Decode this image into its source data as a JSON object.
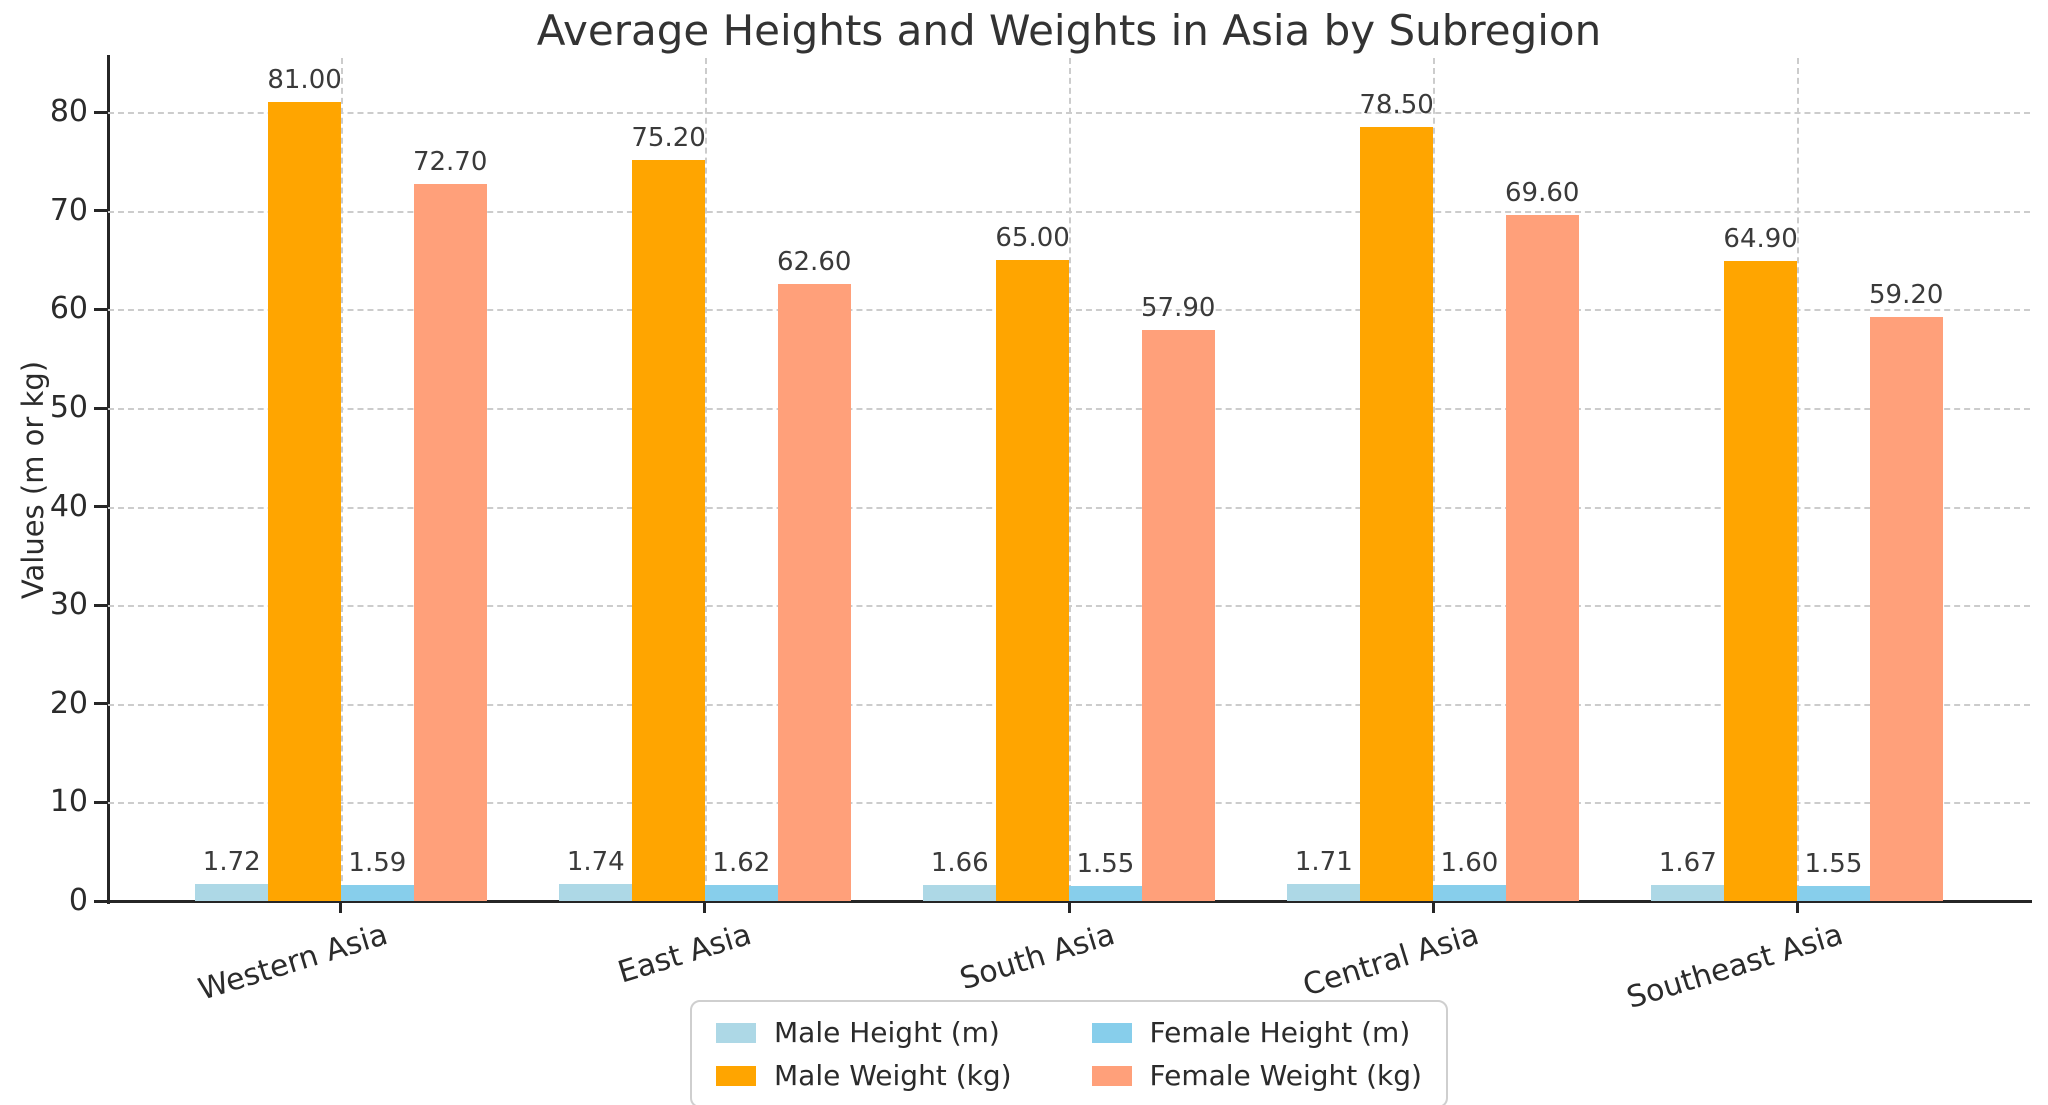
{
  "figure": {
    "background": "#ffffff"
  },
  "chart_data": {
    "type": "bar",
    "title": "Average Heights and Weights in Asia by Subregion",
    "xlabel": "",
    "ylabel": "Values (m or kg)",
    "categories": [
      "Western Asia",
      "East Asia",
      "South Asia",
      "Central Asia",
      "Southeast Asia"
    ],
    "series": [
      {
        "name": "Male Height (m)",
        "color": "#ADD8E6",
        "values": [
          1.72,
          1.74,
          1.66,
          1.71,
          1.67
        ]
      },
      {
        "name": "Male Weight (kg)",
        "color": "#FFA500",
        "values": [
          81.0,
          75.2,
          65.0,
          78.5,
          64.9
        ]
      },
      {
        "name": "Female Height (m)",
        "color": "#87CEEB",
        "values": [
          1.59,
          1.62,
          1.55,
          1.6,
          1.55
        ]
      },
      {
        "name": "Female Weight (kg)",
        "color": "#FFA07A",
        "values": [
          72.7,
          62.6,
          57.9,
          69.6,
          59.2
        ]
      }
    ],
    "value_labels": {
      "shown": true,
      "format": "2 decimal places",
      "examples": [
        "1.72",
        "81.00",
        "1.59",
        "72.70"
      ]
    },
    "yticks": [
      0,
      10,
      20,
      30,
      40,
      50,
      60,
      70,
      80
    ],
    "ylim": [
      0,
      85.5
    ],
    "grid": {
      "horizontal": true,
      "vertical": true,
      "style": "dashed",
      "color": "#cccccc"
    },
    "spines": {
      "left": true,
      "bottom": true,
      "top": false,
      "right": false,
      "color": "#262626"
    },
    "x_tick_label_rotation_deg": -17,
    "legend": {
      "position": "lower-center",
      "columns": 2,
      "items": [
        {
          "label": "Male Height (m)",
          "color": "#ADD8E6"
        },
        {
          "label": "Female Height (m)",
          "color": "#87CEEB"
        },
        {
          "label": "Male Weight (kg)",
          "color": "#FFA500"
        },
        {
          "label": "Female Weight (kg)",
          "color": "#FFA07A"
        }
      ]
    },
    "colors": {
      "text": "#2b2b2b",
      "title": "#333333",
      "grid": "#cccccc",
      "spine": "#262626"
    }
  }
}
